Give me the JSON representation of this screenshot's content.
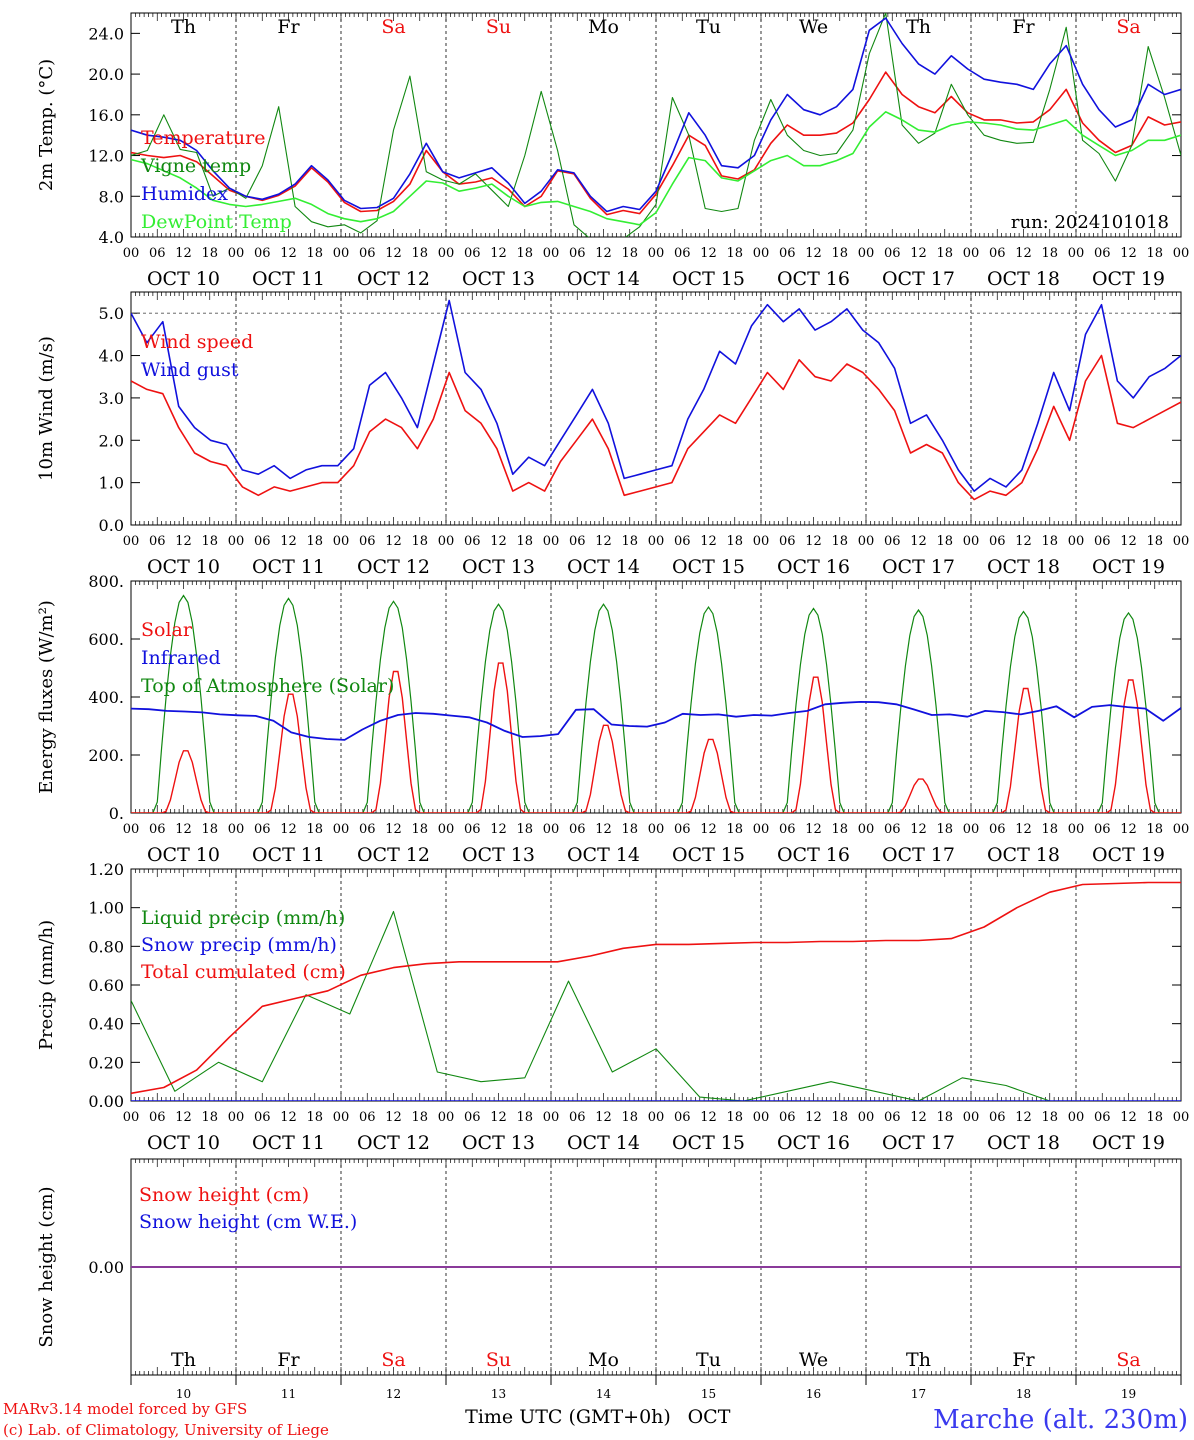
{
  "x_axis": {
    "hour_ticks": [
      "00",
      "06",
      "12",
      "18"
    ],
    "final_tick": "00",
    "dates": [
      "OCT 10",
      "OCT 11",
      "OCT 12",
      "OCT 13",
      "OCT 14",
      "OCT 15",
      "OCT 16",
      "OCT 17",
      "OCT 18",
      "OCT 19"
    ],
    "weekdays": [
      "Th",
      "Fr",
      "Sa",
      "Su",
      "Mo",
      "Tu",
      "We",
      "Th",
      "Fr",
      "Sa"
    ],
    "weekend_flags": [
      false,
      false,
      true,
      true,
      false,
      false,
      false,
      false,
      false,
      true
    ],
    "bottom_day_numbers": [
      "10",
      "11",
      "12",
      "13",
      "14",
      "15",
      "16",
      "17",
      "18",
      "19"
    ],
    "bottom_label": "Time UTC (GMT+0h)",
    "bottom_month": "OCT"
  },
  "footer": {
    "credit_line1": "MARv3.14 model forced by GFS",
    "credit_line2": "(c) Lab. of Climatology, University of Liege",
    "station": "Marche (alt. 230m)"
  },
  "colors": {
    "red": "#ee1111",
    "green": "#118811",
    "blue": "#1111dd",
    "lightgreen": "#33ee33",
    "purple": "#8a3a9a",
    "weekend": "#ee1111"
  },
  "chart_data": [
    {
      "type": "line",
      "ylabel": "2m Temp. (°C)",
      "ylim": [
        4,
        26
      ],
      "yticks": [
        "4.0",
        "8.0",
        "12.0",
        "16.0",
        "20.0",
        "24.0"
      ],
      "ytick_values": [
        4,
        8,
        12,
        16,
        20,
        24
      ],
      "grid_ref_y": null,
      "annotation": "run: 2024101018",
      "x_hours_step": 6,
      "series": [
        {
          "name": "Temperature",
          "color": "red",
          "values": [
            12.3,
            12.0,
            11.8,
            12.0,
            11.4,
            10.0,
            8.6,
            8.0,
            7.6,
            8.1,
            9.0,
            10.8,
            9.4,
            7.4,
            6.5,
            6.6,
            7.5,
            9.2,
            12.5,
            10.4,
            9.2,
            9.4,
            9.8,
            8.7,
            7.0,
            8.0,
            10.5,
            10.2,
            7.8,
            6.2,
            6.6,
            6.3,
            8.2,
            11.0,
            14.0,
            13.0,
            10.0,
            9.7,
            10.6,
            13.2,
            15.0,
            14.0,
            14.0,
            14.2,
            15.2,
            17.5,
            20.2,
            18.0,
            16.8,
            16.2,
            17.8,
            16.2,
            15.5,
            15.5,
            15.2,
            15.3,
            16.5,
            18.5,
            15.2,
            13.5,
            12.3,
            13.0,
            15.8,
            15.0,
            15.3
          ]
        },
        {
          "name": "Vigne temp",
          "color": "green",
          "values": [
            12.0,
            12.5,
            16.0,
            12.6,
            12.3,
            8.0,
            8.8,
            7.8,
            11.0,
            16.8,
            7.0,
            5.5,
            5.0,
            5.2,
            4.4,
            5.6,
            14.5,
            19.8,
            10.4,
            9.6,
            9.2,
            10.2,
            8.6,
            7.0,
            12.0,
            18.3,
            12.5,
            5.2,
            3.8,
            3.5,
            3.8,
            5.0,
            7.2,
            17.7,
            14.0,
            6.8,
            6.5,
            6.8,
            13.5,
            17.5,
            14.0,
            12.5,
            12.0,
            12.2,
            14.5,
            22.0,
            26.0,
            15.0,
            13.2,
            14.2,
            19.0,
            16.0,
            14.0,
            13.5,
            13.2,
            13.3,
            18.5,
            24.6,
            13.5,
            12.2,
            9.5,
            13.0,
            22.7,
            17.7,
            12.0
          ]
        },
        {
          "name": "Humidex",
          "color": "blue",
          "values": [
            14.5,
            14.0,
            13.8,
            13.5,
            12.5,
            10.5,
            8.8,
            8.0,
            7.7,
            8.2,
            9.2,
            11.0,
            9.6,
            7.6,
            6.8,
            6.9,
            7.8,
            10.2,
            13.2,
            10.4,
            9.8,
            10.3,
            10.8,
            9.3,
            7.3,
            8.5,
            10.6,
            10.3,
            8.0,
            6.5,
            7.0,
            6.7,
            8.5,
            12.2,
            16.2,
            14.0,
            11.0,
            10.8,
            12.0,
            15.5,
            18.0,
            16.5,
            16.0,
            16.8,
            18.5,
            24.3,
            25.5,
            23.0,
            21.0,
            20.0,
            21.8,
            20.5,
            19.5,
            19.2,
            19.0,
            18.5,
            21.0,
            22.8,
            19.0,
            16.5,
            14.8,
            15.5,
            19.0,
            18.0,
            18.5
          ]
        },
        {
          "name": "DewPoint Temp",
          "color": "lightgreen",
          "values": [
            11.6,
            11.2,
            10.5,
            9.8,
            8.8,
            7.6,
            7.2,
            7.0,
            7.2,
            7.5,
            7.8,
            7.2,
            6.3,
            5.8,
            5.5,
            5.8,
            6.5,
            8.0,
            9.5,
            9.3,
            8.5,
            8.8,
            9.2,
            8.0,
            7.0,
            7.4,
            7.5,
            7.0,
            6.5,
            5.8,
            5.5,
            5.2,
            6.4,
            9.2,
            11.8,
            11.5,
            9.8,
            9.5,
            10.5,
            11.5,
            12.0,
            11.0,
            11.0,
            11.5,
            12.2,
            14.8,
            16.3,
            15.5,
            14.5,
            14.3,
            15.0,
            15.3,
            15.2,
            15.0,
            14.6,
            14.5,
            15.0,
            15.5,
            14.0,
            13.0,
            12.0,
            12.5,
            13.5,
            13.5,
            14.0
          ]
        }
      ]
    },
    {
      "type": "line",
      "ylabel": "10m Wind (m/s)",
      "ylim": [
        0,
        5.5
      ],
      "yticks": [
        "0.0",
        "1.0",
        "2.0",
        "3.0",
        "4.0",
        "5.0"
      ],
      "ytick_values": [
        0,
        1,
        2,
        3,
        4,
        5
      ],
      "grid_ref_y": 5.0,
      "annotation": null,
      "x_hours_step": 6,
      "series": [
        {
          "name": "Wind speed",
          "color": "red",
          "values": [
            3.4,
            3.2,
            3.1,
            2.3,
            1.7,
            1.5,
            1.4,
            0.9,
            0.7,
            0.9,
            0.8,
            0.9,
            1.0,
            1.0,
            1.4,
            2.2,
            2.5,
            2.3,
            1.8,
            2.5,
            3.6,
            2.7,
            2.4,
            1.8,
            0.8,
            1.0,
            0.8,
            1.5,
            2.0,
            2.5,
            1.8,
            0.7,
            0.8,
            0.9,
            1.0,
            1.8,
            2.2,
            2.6,
            2.4,
            3.0,
            3.6,
            3.2,
            3.9,
            3.5,
            3.4,
            3.8,
            3.6,
            3.2,
            2.7,
            1.7,
            1.9,
            1.7,
            1.0,
            0.6,
            0.8,
            0.7,
            1.0,
            1.8,
            2.8,
            2.0,
            3.4,
            4.0,
            2.4,
            2.3,
            2.5,
            2.7,
            2.9
          ]
        },
        {
          "name": "Wind gust",
          "color": "blue",
          "values": [
            5.0,
            4.3,
            4.8,
            2.8,
            2.3,
            2.0,
            1.9,
            1.3,
            1.2,
            1.4,
            1.1,
            1.3,
            1.4,
            1.4,
            1.8,
            3.3,
            3.6,
            3.0,
            2.3,
            3.8,
            5.3,
            3.6,
            3.2,
            2.4,
            1.2,
            1.6,
            1.4,
            2.0,
            2.6,
            3.2,
            2.4,
            1.1,
            1.2,
            1.3,
            1.4,
            2.5,
            3.2,
            4.1,
            3.8,
            4.7,
            5.2,
            4.8,
            5.1,
            4.6,
            4.8,
            5.1,
            4.6,
            4.3,
            3.7,
            2.4,
            2.6,
            2.0,
            1.3,
            0.8,
            1.1,
            0.9,
            1.3,
            2.4,
            3.6,
            2.7,
            4.5,
            5.2,
            3.4,
            3.0,
            3.5,
            3.7,
            4.0
          ]
        }
      ]
    },
    {
      "type": "line",
      "ylabel": "Energy fluxes (W/m²)",
      "ylim": [
        0,
        800
      ],
      "yticks": [
        "0.",
        "200.",
        "400.",
        "600.",
        "800."
      ],
      "ytick_values": [
        0,
        200,
        400,
        600,
        800
      ],
      "grid_ref_y": null,
      "annotation": null,
      "solar_peaks": [
        220,
        420,
        500,
        530,
        310,
        260,
        480,
        120,
        440,
        470
      ],
      "toa_peaks": [
        750,
        740,
        730,
        720,
        720,
        710,
        705,
        700,
        695,
        690
      ],
      "infrared_values": [
        360,
        358,
        352,
        350,
        347,
        340,
        337,
        335,
        318,
        278,
        262,
        255,
        252,
        288,
        318,
        338,
        345,
        342,
        336,
        330,
        312,
        283,
        262,
        265,
        272,
        356,
        358,
        305,
        300,
        298,
        312,
        342,
        338,
        340,
        332,
        338,
        336,
        345,
        352,
        375,
        380,
        383,
        382,
        375,
        357,
        338,
        340,
        332,
        352,
        348,
        340,
        352,
        368,
        330,
        366,
        372,
        365,
        360,
        318,
        362
      ]
    },
    {
      "type": "line",
      "ylabel": "Precip (mm/h)",
      "ylim": [
        0,
        1.2
      ],
      "yticks": [
        "0.00",
        "0.20",
        "0.40",
        "0.60",
        "0.80",
        "1.00",
        "1.20"
      ],
      "ytick_values": [
        0,
        0.2,
        0.4,
        0.6,
        0.8,
        1.0,
        1.2
      ],
      "grid_ref_y": null,
      "annotation": null,
      "series": [
        {
          "name": "Liquid precip (mm/h)",
          "color": "green",
          "values": [
            0.52,
            0.05,
            0.2,
            0.1,
            0.55,
            0.45,
            0.98,
            0.15,
            0.1,
            0.12,
            0.62,
            0.15,
            0.27,
            0.02,
            0.0,
            0.05,
            0.1,
            0.05,
            0.0,
            0.12,
            0.08,
            0.0,
            0.0,
            0.0,
            0.0
          ]
        },
        {
          "name": "Snow precip (mm/h)",
          "color": "blue",
          "values": [
            0.0,
            0.0
          ]
        },
        {
          "name": "Total cumulated (cm)",
          "color": "red",
          "values": [
            0.04,
            0.07,
            0.16,
            0.33,
            0.49,
            0.53,
            0.57,
            0.65,
            0.69,
            0.71,
            0.72,
            0.72,
            0.72,
            0.72,
            0.75,
            0.79,
            0.81,
            0.81,
            0.815,
            0.82,
            0.82,
            0.825,
            0.825,
            0.83,
            0.83,
            0.84,
            0.9,
            1.0,
            1.08,
            1.12,
            1.125,
            1.13,
            1.13
          ]
        }
      ]
    },
    {
      "type": "line",
      "ylabel": "Snow height (cm)",
      "ylim": [
        -1,
        1
      ],
      "yticks": [
        "0.00"
      ],
      "ytick_values": [
        0
      ],
      "grid_ref_y": null,
      "annotation": null,
      "series": [
        {
          "name": "Snow height (cm)",
          "color": "red",
          "values": [
            0,
            0
          ]
        },
        {
          "name": "Snow height (cm W.E.)",
          "color": "blue",
          "values": [
            0,
            0
          ]
        }
      ]
    }
  ]
}
